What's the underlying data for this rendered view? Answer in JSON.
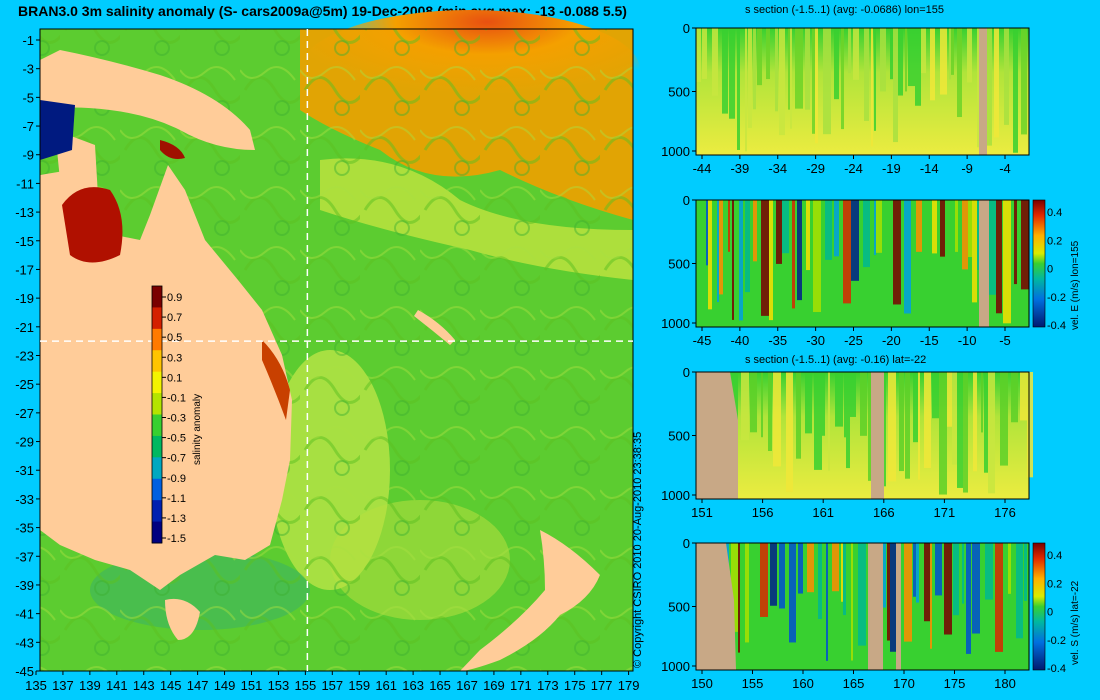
{
  "title": "BRAN3.0 3m salinity anomaly (S- cars2009a@5m) 19-Dec-2008 (min avg max: -13 -0.088 5.5)",
  "copyright": "© Copyright CSIRO 2010   20-Aug-2010 23:38:35",
  "map": {
    "lat_ticks": [
      "-1",
      "-3",
      "-5",
      "-7",
      "-9",
      "-11",
      "-13",
      "-15",
      "-17",
      "-19",
      "-21",
      "-23",
      "-25",
      "-27",
      "-29",
      "-31",
      "-33",
      "-35",
      "-37",
      "-39",
      "-41",
      "-43",
      "-45"
    ],
    "lon_ticks": [
      "135",
      "137",
      "139",
      "141",
      "143",
      "145",
      "147",
      "149",
      "151",
      "153",
      "155",
      "157",
      "159",
      "161",
      "163",
      "165",
      "167",
      "169",
      "171",
      "173",
      "175",
      "177",
      "179"
    ],
    "crosshair": {
      "lon": 155,
      "lat": -22
    },
    "colorbar": {
      "label": "salinity anomaly",
      "ticks": [
        "0.9",
        "0.7",
        "0.5",
        "0.3",
        "0.1",
        "-0.1",
        "-0.3",
        "-0.5",
        "-0.7",
        "-0.9",
        "-1.1",
        "-1.3",
        "-1.5"
      ],
      "colors": [
        "#7a0000",
        "#d42000",
        "#ff7a00",
        "#ffc400",
        "#f4f400",
        "#b4e400",
        "#38d030",
        "#00b860",
        "#00a8c0",
        "#0060e0",
        "#0020b0",
        "#000080"
      ]
    }
  },
  "panels": {
    "p1": {
      "title": "s section (-1.5..1) (avg: -0.0686) lon=155",
      "y_ticks": [
        "0",
        "500",
        "1000"
      ],
      "x_ticks": [
        "-44",
        "-39",
        "-34",
        "-29",
        "-24",
        "-19",
        "-14",
        "-9",
        "-4"
      ]
    },
    "p2": {
      "title": "",
      "y_ticks": [
        "0",
        "500",
        "1000"
      ],
      "x_ticks": [
        "-45",
        "-40",
        "-35",
        "-30",
        "-25",
        "-20",
        "-15",
        "-10",
        "-5"
      ],
      "colorbar_label": "vel. E (m/s) lon=155",
      "colorbar_ticks": [
        "0.4",
        "0.2",
        "0",
        "-0.2",
        "-0.4"
      ]
    },
    "p3": {
      "title": "s section (-1.5..1) (avg: -0.16) lat=-22",
      "y_ticks": [
        "0",
        "500",
        "1000"
      ],
      "x_ticks": [
        "151",
        "156",
        "161",
        "166",
        "171",
        "176"
      ]
    },
    "p4": {
      "title": "",
      "y_ticks": [
        "0",
        "500",
        "1000"
      ],
      "x_ticks": [
        "150",
        "155",
        "160",
        "165",
        "170",
        "175",
        "180"
      ],
      "colorbar_label": "vel. S (m/s) lat=-22",
      "colorbar_ticks": [
        "0.4",
        "0.2",
        "0",
        "-0.2",
        "-0.4"
      ]
    },
    "vel_colors": [
      "#7a0000",
      "#d82800",
      "#ff8c00",
      "#f4e000",
      "#a8e000",
      "#38d030",
      "#00b890",
      "#00a0e0",
      "#0050d0",
      "#00208a"
    ],
    "land_color": "#c8a886"
  }
}
